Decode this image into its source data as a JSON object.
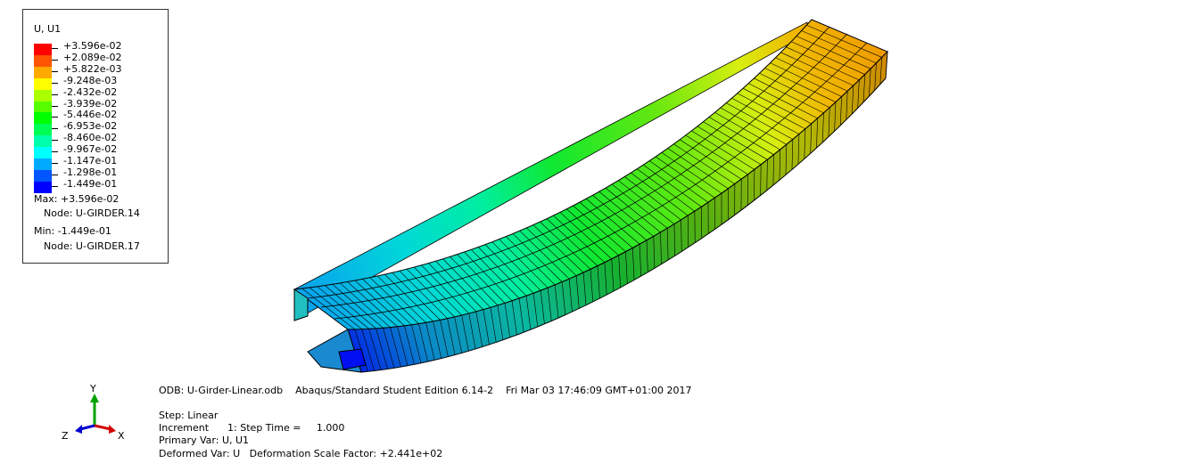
{
  "legend": {
    "title": "U, U1",
    "entries": [
      {
        "value": "+3.596e-02",
        "color": "#ff0000"
      },
      {
        "value": "+2.089e-02",
        "color": "#ff5500"
      },
      {
        "value": "+5.822e-03",
        "color": "#ffaa00"
      },
      {
        "value": "-9.248e-03",
        "color": "#ffff00"
      },
      {
        "value": "-2.432e-02",
        "color": "#aaff00"
      },
      {
        "value": "-3.939e-02",
        "color": "#55ff00"
      },
      {
        "value": "-5.446e-02",
        "color": "#00ff00"
      },
      {
        "value": "-6.953e-02",
        "color": "#00ff55"
      },
      {
        "value": "-8.460e-02",
        "color": "#00ffaa"
      },
      {
        "value": "-9.967e-02",
        "color": "#00ffff"
      },
      {
        "value": "-1.147e-01",
        "color": "#00aaff"
      },
      {
        "value": "-1.298e-01",
        "color": "#0055ff"
      },
      {
        "value": "-1.449e-01",
        "color": "#0000ff"
      }
    ],
    "max_label": "Max: +3.596e-02",
    "max_node": "Node: U-GIRDER.14",
    "min_label": "Min: -1.449e-01",
    "min_node": "Node: U-GIRDER.17"
  },
  "info": {
    "line1": "ODB: U-Girder-Linear.odb    Abaqus/Standard Student Edition 6.14-2    Fri Mar 03 17:46:09 GMT+01:00 2017",
    "step": "Step: Linear",
    "increment": "Increment      1: Step Time =     1.000",
    "primary": "Primary Var: U, U1",
    "deformed": "Deformed Var: U   Deformation Scale Factor: +2.441e+02"
  },
  "triad": {
    "x": "X",
    "y": "Y",
    "z": "Z"
  },
  "colors": {
    "x_axis": "#d40000",
    "y_axis": "#00a000",
    "z_axis": "#0000d0"
  }
}
